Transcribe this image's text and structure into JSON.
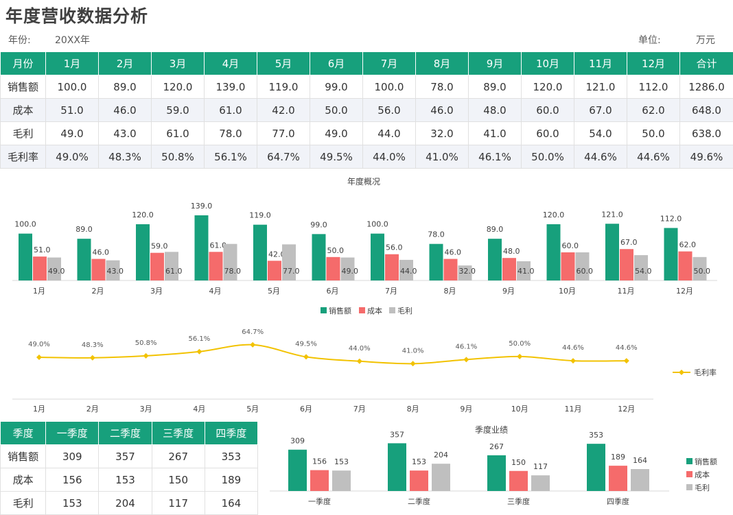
{
  "page": {
    "title": "年度营收数据分析",
    "year_label": "年份:",
    "year_value": "20XX年",
    "unit_label": "单位:",
    "unit_value": "万元"
  },
  "monthly_table": {
    "headers": [
      "月份",
      "1月",
      "2月",
      "3月",
      "4月",
      "5月",
      "6月",
      "7月",
      "8月",
      "9月",
      "10月",
      "11月",
      "12月",
      "合计"
    ],
    "rows": [
      [
        "销售额",
        "100.0",
        "89.0",
        "120.0",
        "139.0",
        "119.0",
        "99.0",
        "100.0",
        "78.0",
        "89.0",
        "120.0",
        "121.0",
        "112.0",
        "1286.0"
      ],
      [
        "成本",
        "51.0",
        "46.0",
        "59.0",
        "61.0",
        "42.0",
        "50.0",
        "56.0",
        "46.0",
        "48.0",
        "60.0",
        "67.0",
        "62.0",
        "648.0"
      ],
      [
        "毛利",
        "49.0",
        "43.0",
        "61.0",
        "78.0",
        "77.0",
        "49.0",
        "44.0",
        "32.0",
        "41.0",
        "60.0",
        "54.0",
        "50.0",
        "638.0"
      ],
      [
        "毛利率",
        "49.0%",
        "48.3%",
        "50.8%",
        "56.1%",
        "64.7%",
        "49.5%",
        "44.0%",
        "41.0%",
        "46.1%",
        "50.0%",
        "44.6%",
        "44.6%",
        "49.6%"
      ]
    ]
  },
  "quarter_table": {
    "headers": [
      "季度",
      "一季度",
      "二季度",
      "三季度",
      "四季度"
    ],
    "rows": [
      [
        "销售额",
        "309",
        "357",
        "267",
        "353"
      ],
      [
        "成本",
        "156",
        "153",
        "150",
        "189"
      ],
      [
        "毛利",
        "153",
        "204",
        "117",
        "164"
      ]
    ]
  },
  "colors": {
    "sales": "#17a07c",
    "cost": "#f56b6b",
    "profit": "#bfbfbf",
    "margin": "#f2c200",
    "header_bg": "#17a07c"
  },
  "chart_data": [
    {
      "type": "bar",
      "title": "年度概况",
      "categories": [
        "1月",
        "2月",
        "3月",
        "4月",
        "5月",
        "6月",
        "7月",
        "8月",
        "9月",
        "10月",
        "11月",
        "12月"
      ],
      "series": [
        {
          "name": "销售额",
          "values": [
            100,
            89,
            120,
            139,
            119,
            99,
            100,
            78,
            89,
            120,
            121,
            112
          ]
        },
        {
          "name": "成本",
          "values": [
            51,
            46,
            59,
            61,
            42,
            50,
            56,
            46,
            48,
            60,
            67,
            62
          ]
        },
        {
          "name": "毛利",
          "values": [
            49,
            43,
            61,
            78,
            77,
            49,
            44,
            32,
            41,
            60,
            54,
            50
          ]
        }
      ],
      "legend": "bottom"
    },
    {
      "type": "line",
      "title": "",
      "categories": [
        "1月",
        "2月",
        "3月",
        "4月",
        "5月",
        "6月",
        "7月",
        "8月",
        "9月",
        "10月",
        "11月",
        "12月"
      ],
      "series": [
        {
          "name": "毛利率",
          "values": [
            49.0,
            48.3,
            50.8,
            56.1,
            64.7,
            49.5,
            44.0,
            41.0,
            46.1,
            50.0,
            44.6,
            44.6
          ],
          "labels": [
            "49.0%",
            "48.3%",
            "50.8%",
            "56.1%",
            "64.7%",
            "49.5%",
            "44.0%",
            "41.0%",
            "46.1%",
            "50.0%",
            "44.6%",
            "44.6%"
          ]
        }
      ],
      "legend": "right"
    },
    {
      "type": "bar",
      "title": "季度业绩",
      "categories": [
        "一季度",
        "二季度",
        "三季度",
        "四季度"
      ],
      "series": [
        {
          "name": "销售额",
          "values": [
            309,
            357,
            267,
            353
          ]
        },
        {
          "name": "成本",
          "values": [
            156,
            153,
            150,
            189
          ]
        },
        {
          "name": "毛利",
          "values": [
            153,
            204,
            117,
            164
          ]
        }
      ],
      "legend": "right"
    }
  ]
}
